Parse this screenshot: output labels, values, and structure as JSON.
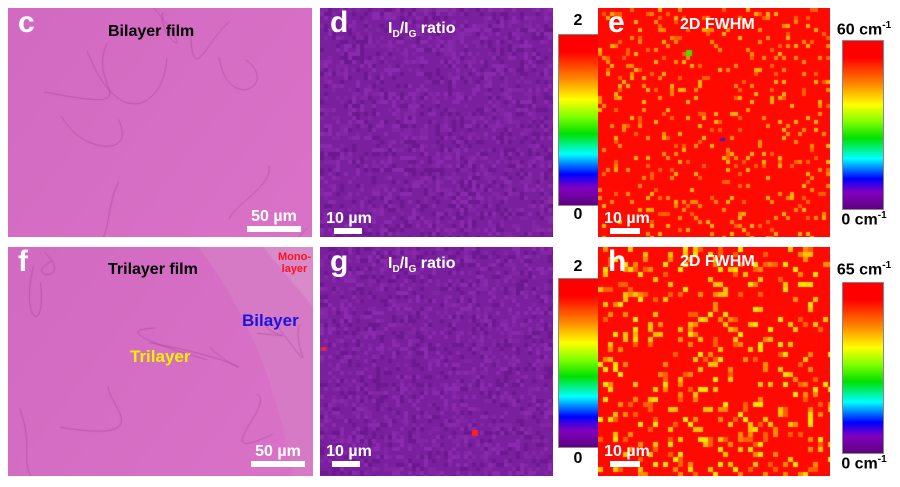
{
  "panels": {
    "c": {
      "letter": "c",
      "title": "Bilayer film",
      "scale": "50 µm"
    },
    "d": {
      "letter": "d",
      "title_main": "I",
      "title_sub1": "D",
      "title_slash": "/I",
      "title_sub2": "G",
      "title_rest": " ratio",
      "scale": "10 µm",
      "cbar_max": "2",
      "cbar_min": "0"
    },
    "e": {
      "letter": "e",
      "title": "2D FWHM",
      "scale": "10 µm",
      "cbar_max": "60 cm",
      "cbar_min": "0 cm",
      "unit_exp": "-1"
    },
    "f": {
      "letter": "f",
      "title": "Trilayer film",
      "scale": "50 µm",
      "label_mono1": "Mono-",
      "label_mono2": "layer",
      "label_bilayer": "Bilayer",
      "label_trilayer": "Trilayer"
    },
    "g": {
      "letter": "g",
      "title_main": "I",
      "title_sub1": "D",
      "title_slash": "/I",
      "title_sub2": "G",
      "title_rest": " ratio",
      "scale": "10 µm",
      "cbar_max": "2",
      "cbar_min": "0"
    },
    "h": {
      "letter": "h",
      "title": "2D FWHM",
      "scale": "10 µm",
      "cbar_max": "65 cm",
      "cbar_min": "0 cm",
      "unit_exp": "-1"
    }
  },
  "colors": {
    "optical": "#d768c4",
    "ratio_map": "#7a1f9e",
    "fwhm_map": "#ff0a00"
  }
}
